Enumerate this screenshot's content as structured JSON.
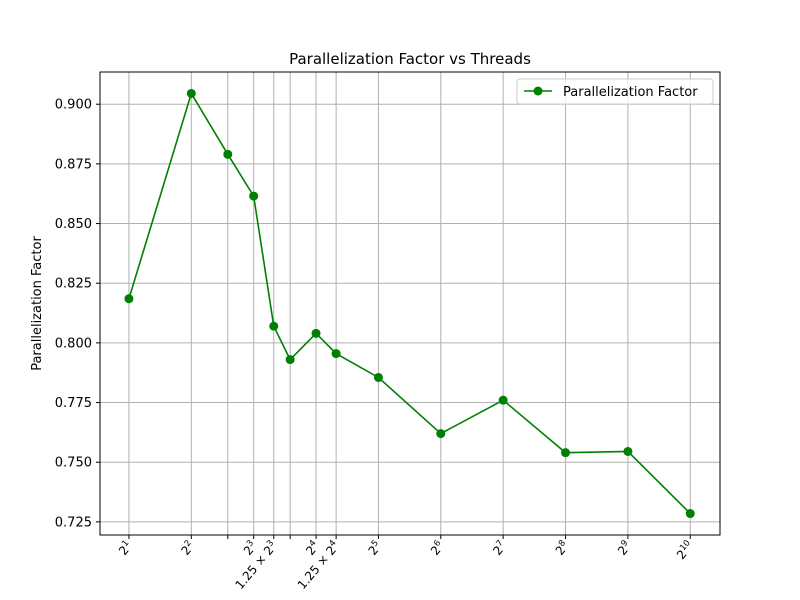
{
  "chart_data": {
    "type": "line",
    "title": "Parallelization Factor vs Threads",
    "xlabel": "",
    "ylabel": "Parallelization Factor",
    "x_scale": "log2",
    "xlim": [
      1.45,
      1425
    ],
    "ylim": [
      0.7195,
      0.9135
    ],
    "grid": true,
    "legend_position": "top-right",
    "color": "#008000",
    "x_ticks": [
      {
        "value": 2,
        "base": "2",
        "exp": "1",
        "prefix": ""
      },
      {
        "value": 4,
        "base": "2",
        "exp": "2",
        "prefix": ""
      },
      {
        "value": 6,
        "base": "",
        "exp": "",
        "prefix": ""
      },
      {
        "value": 8,
        "base": "2",
        "exp": "3",
        "prefix": ""
      },
      {
        "value": 10,
        "base": "2",
        "exp": "3",
        "prefix": "1.25 × "
      },
      {
        "value": 12,
        "base": "",
        "exp": "",
        "prefix": ""
      },
      {
        "value": 16,
        "base": "2",
        "exp": "4",
        "prefix": ""
      },
      {
        "value": 20,
        "base": "2",
        "exp": "4",
        "prefix": "1.25 × "
      },
      {
        "value": 32,
        "base": "2",
        "exp": "5",
        "prefix": ""
      },
      {
        "value": 64,
        "base": "2",
        "exp": "6",
        "prefix": ""
      },
      {
        "value": 128,
        "base": "2",
        "exp": "7",
        "prefix": ""
      },
      {
        "value": 256,
        "base": "2",
        "exp": "8",
        "prefix": ""
      },
      {
        "value": 512,
        "base": "2",
        "exp": "9",
        "prefix": ""
      },
      {
        "value": 1024,
        "base": "2",
        "exp": "10",
        "prefix": ""
      }
    ],
    "y_ticks": [
      "0.725",
      "0.750",
      "0.775",
      "0.800",
      "0.825",
      "0.850",
      "0.875",
      "0.900"
    ],
    "series": [
      {
        "name": "Parallelization Factor",
        "x": [
          2,
          4,
          6,
          8,
          10,
          12,
          16,
          20,
          32,
          64,
          128,
          256,
          512,
          1024
        ],
        "y": [
          0.8185,
          0.9045,
          0.879,
          0.8615,
          0.807,
          0.793,
          0.804,
          0.7955,
          0.7855,
          0.762,
          0.776,
          0.754,
          0.7545,
          0.7285
        ]
      }
    ]
  }
}
